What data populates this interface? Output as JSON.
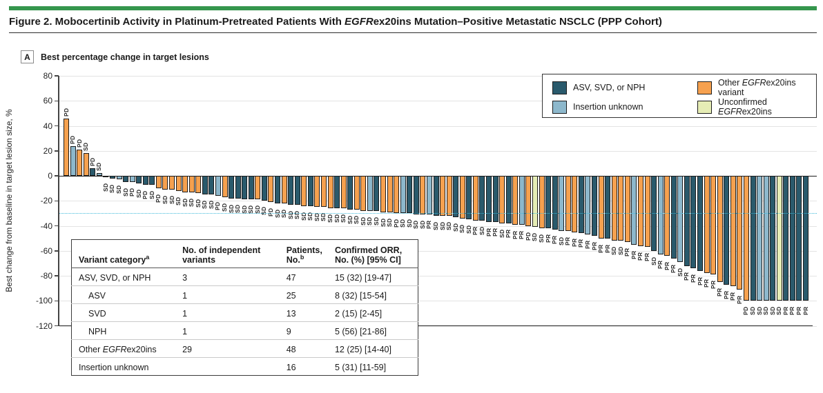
{
  "figure": {
    "title": "Figure 2. Mobocertinib Activity in Platinum-Pretreated Patients With *EGFR*ex20ins Mutation–Positive Metastatic NSCLC (PPP Cohort)",
    "panel_letter": "A",
    "panel_title": "Best percentage change in target lesions"
  },
  "colors": {
    "accent_green": "#35964d",
    "asv_svd_nph": "#2a5a6c",
    "insertion_unknown": "#8db8cc",
    "other_variant": "#f6a14f",
    "unconfirmed": "#e6edb5",
    "reference_line": "#3bb8d9"
  },
  "chart_data": {
    "type": "bar",
    "subtype": "waterfall",
    "title": "Best percentage change in target lesions",
    "xlabel": "",
    "ylabel": "Best change from baseline in target lesion size, %",
    "ylim": [
      -120,
      80
    ],
    "yticks": [
      80,
      60,
      40,
      20,
      0,
      -20,
      -40,
      -60,
      -80,
      -100,
      -120
    ],
    "reference_line_y": -30,
    "grid": true,
    "legend_position": "top-right",
    "legend": [
      {
        "key": "A",
        "label": "ASV, SVD, or NPH"
      },
      {
        "key": "O",
        "label": "Other *EGFR*ex20ins variant"
      },
      {
        "key": "U",
        "label": "Insertion unknown"
      },
      {
        "key": "X",
        "label": "Unconfirmed *EGFR*ex20ins"
      }
    ],
    "bar_order_note": "each bar = [best % change, variant category key, response label]",
    "bars": [
      [
        46,
        "O",
        "PD"
      ],
      [
        24,
        "U",
        "PD"
      ],
      [
        21,
        "O",
        "PD"
      ],
      [
        18,
        "O",
        "SD"
      ],
      [
        6,
        "A",
        "PD"
      ],
      [
        2,
        "U",
        "SD"
      ],
      [
        -1,
        "A",
        "SD"
      ],
      [
        -2,
        "A",
        "SD"
      ],
      [
        -3,
        "U",
        "SD"
      ],
      [
        -5,
        "A",
        "SD"
      ],
      [
        -5,
        "U",
        "PD"
      ],
      [
        -6,
        "A",
        "SD"
      ],
      [
        -7,
        "A",
        "PD"
      ],
      [
        -7,
        "A",
        "SD"
      ],
      [
        -10,
        "O",
        "PD"
      ],
      [
        -11,
        "O",
        "SD"
      ],
      [
        -11,
        "O",
        "SD"
      ],
      [
        -12,
        "O",
        "SD"
      ],
      [
        -13,
        "O",
        "SD"
      ],
      [
        -13,
        "O",
        "SD"
      ],
      [
        -14,
        "O",
        "SD"
      ],
      [
        -15,
        "A",
        "SD"
      ],
      [
        -15,
        "A",
        "SD"
      ],
      [
        -16,
        "U",
        "PD"
      ],
      [
        -17,
        "O",
        "SD"
      ],
      [
        -18,
        "A",
        "SD"
      ],
      [
        -18,
        "A",
        "SD"
      ],
      [
        -19,
        "A",
        "SD"
      ],
      [
        -19,
        "A",
        "SD"
      ],
      [
        -19,
        "O",
        "SD"
      ],
      [
        -20,
        "A",
        "SD"
      ],
      [
        -21,
        "O",
        "PD"
      ],
      [
        -22,
        "A",
        "SD"
      ],
      [
        -22,
        "O",
        "SD"
      ],
      [
        -23,
        "A",
        "SD"
      ],
      [
        -23,
        "A",
        "SD"
      ],
      [
        -24,
        "O",
        "SD"
      ],
      [
        -24,
        "A",
        "SD"
      ],
      [
        -25,
        "O",
        "SD"
      ],
      [
        -25,
        "O",
        "SD"
      ],
      [
        -26,
        "O",
        "SD"
      ],
      [
        -26,
        "A",
        "SD"
      ],
      [
        -26,
        "O",
        "SD"
      ],
      [
        -27,
        "A",
        "SD"
      ],
      [
        -27,
        "O",
        "SD"
      ],
      [
        -28,
        "O",
        "SD"
      ],
      [
        -28,
        "U",
        "SD"
      ],
      [
        -28,
        "A",
        "SD"
      ],
      [
        -29,
        "O",
        "SD"
      ],
      [
        -29,
        "O",
        "SD"
      ],
      [
        -30,
        "O",
        "PD"
      ],
      [
        -30,
        "U",
        "SD"
      ],
      [
        -30,
        "A",
        "SD"
      ],
      [
        -31,
        "A",
        "SD"
      ],
      [
        -31,
        "O",
        "SD"
      ],
      [
        -31,
        "U",
        "PR"
      ],
      [
        -32,
        "A",
        "SD"
      ],
      [
        -32,
        "O",
        "SD"
      ],
      [
        -32,
        "O",
        "SD"
      ],
      [
        -33,
        "A",
        "SD"
      ],
      [
        -34,
        "O",
        "SD"
      ],
      [
        -35,
        "A",
        "SD"
      ],
      [
        -36,
        "O",
        "PR"
      ],
      [
        -36,
        "A",
        "SD"
      ],
      [
        -37,
        "A",
        "PR"
      ],
      [
        -37,
        "A",
        "PR"
      ],
      [
        -38,
        "O",
        "SD"
      ],
      [
        -38,
        "A",
        "PR"
      ],
      [
        -39,
        "O",
        "PR"
      ],
      [
        -39,
        "U",
        "PR"
      ],
      [
        -40,
        "O",
        "PD"
      ],
      [
        -41,
        "X",
        "SD"
      ],
      [
        -42,
        "O",
        "SD"
      ],
      [
        -42,
        "A",
        "PR"
      ],
      [
        -43,
        "A",
        "PR"
      ],
      [
        -44,
        "U",
        "SD"
      ],
      [
        -44,
        "O",
        "PR"
      ],
      [
        -45,
        "O",
        "PR"
      ],
      [
        -46,
        "A",
        "PR"
      ],
      [
        -47,
        "U",
        "PR"
      ],
      [
        -48,
        "A",
        "PR"
      ],
      [
        -50,
        "O",
        "PR"
      ],
      [
        -50,
        "A",
        "PR"
      ],
      [
        -52,
        "O",
        "SD"
      ],
      [
        -52,
        "O",
        "SD"
      ],
      [
        -53,
        "O",
        "PR"
      ],
      [
        -55,
        "U",
        "PR"
      ],
      [
        -56,
        "O",
        "PR"
      ],
      [
        -57,
        "O",
        "PR"
      ],
      [
        -60,
        "A",
        "SD"
      ],
      [
        -63,
        "U",
        "PR"
      ],
      [
        -64,
        "O",
        "PR"
      ],
      [
        -66,
        "A",
        "PR"
      ],
      [
        -69,
        "U",
        "SD"
      ],
      [
        -72,
        "A",
        "PR"
      ],
      [
        -74,
        "A",
        "PR"
      ],
      [
        -76,
        "A",
        "PR"
      ],
      [
        -78,
        "O",
        "PR"
      ],
      [
        -79,
        "O",
        "PR"
      ],
      [
        -85,
        "O",
        "PR"
      ],
      [
        -87,
        "A",
        "PR"
      ],
      [
        -88,
        "O",
        "PR"
      ],
      [
        -91,
        "O",
        "PR"
      ],
      [
        -100,
        "O",
        "PD"
      ],
      [
        -100,
        "A",
        "SD"
      ],
      [
        -100,
        "U",
        "SD"
      ],
      [
        -100,
        "U",
        "SD"
      ],
      [
        -100,
        "A",
        "SD"
      ],
      [
        -100,
        "X",
        "SD"
      ],
      [
        -100,
        "A",
        "PR"
      ],
      [
        -100,
        "A",
        "PR"
      ],
      [
        -100,
        "A",
        "PR"
      ],
      [
        -100,
        "A",
        "PR"
      ]
    ]
  },
  "table": {
    "headers": [
      "Variant category^a",
      "No. of independent variants",
      "Patients, No.^b",
      "Confirmed ORR, No. (%) [95% CI]"
    ],
    "col_widths_pct": [
      30,
      30,
      14,
      26
    ],
    "rows": [
      {
        "cells": [
          "ASV, SVD, or NPH",
          "3",
          "47",
          "15 (32) [19-47]"
        ],
        "indent": false
      },
      {
        "cells": [
          "ASV",
          "1",
          "25",
          "8 (32) [15-54]"
        ],
        "indent": true
      },
      {
        "cells": [
          "SVD",
          "1",
          "13",
          "2 (15) [2-45]"
        ],
        "indent": true
      },
      {
        "cells": [
          "NPH",
          "1",
          "9",
          "5 (56) [21-86]"
        ],
        "indent": true
      },
      {
        "cells": [
          "Other *EGFR*ex20ins",
          "29",
          "48",
          "12 (25) [14-40]"
        ],
        "indent": false
      },
      {
        "cells": [
          "Insertion unknown",
          "",
          "16",
          "5 (31) [11-59]"
        ],
        "indent": false
      }
    ]
  }
}
